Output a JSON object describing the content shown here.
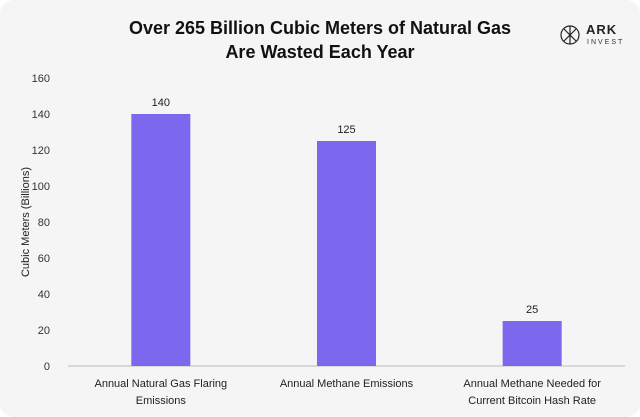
{
  "title_lines": [
    "Over 265 Billion Cubic Meters of Natural Gas",
    "Are Wasted Each Year"
  ],
  "logo": {
    "name": "ARK",
    "sub": "INVEST",
    "icon": "ark-invest-logo"
  },
  "colors": {
    "bar": "#7b68ee",
    "background": "#f5f5f6"
  },
  "chart_data": {
    "type": "bar",
    "title": "Over 265 Billion Cubic Meters of Natural Gas Are Wasted Each Year",
    "ylabel": "Cubic Meters (Billions)",
    "xlabel": "",
    "ylim": [
      0,
      160
    ],
    "yticks": [
      0,
      20,
      40,
      60,
      80,
      100,
      120,
      140,
      160
    ],
    "grid": false,
    "categories": [
      [
        "Annual Natural Gas Flaring",
        "Emissions"
      ],
      [
        "Annual Methane Emissions"
      ],
      [
        "Annual Methane Needed for",
        "Current Bitcoin Hash Rate"
      ]
    ],
    "values": [
      140,
      125,
      25
    ],
    "data_labels": [
      "140",
      "125",
      "25"
    ]
  }
}
